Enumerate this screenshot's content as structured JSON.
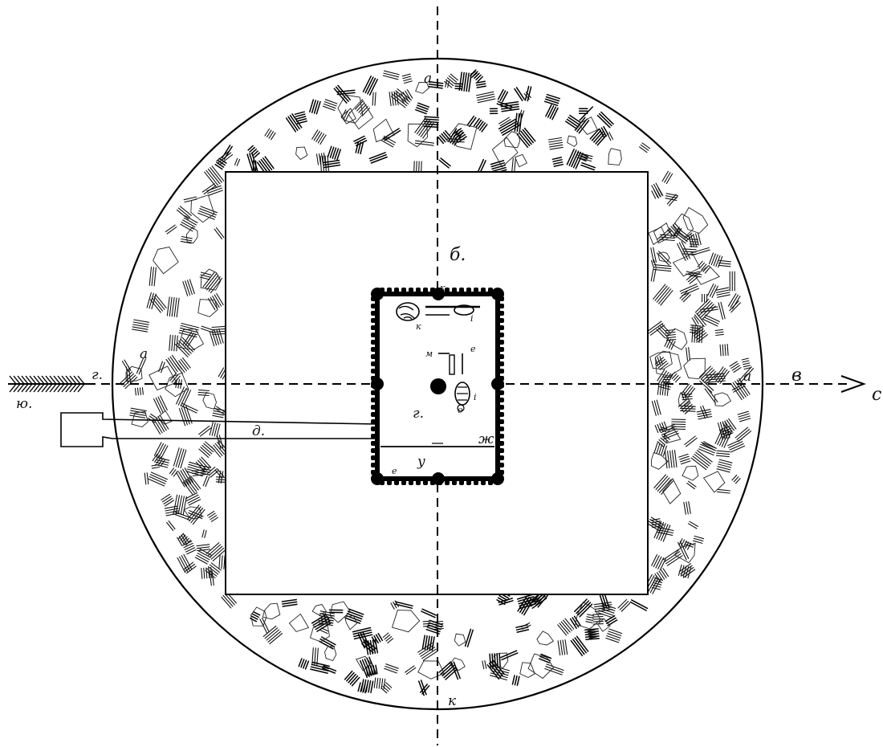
{
  "labels": {
    "top_a": "а",
    "mound_b": "б.",
    "grave_k_top": "к",
    "left_a": "а",
    "left_g": "г.",
    "arrow_yu": "ю.",
    "right_a": "а",
    "right_v": "в",
    "arrow_s": "с",
    "corridor_d": "д.",
    "pit_g": "г.",
    "pit_zh": "ж",
    "pit_y": "у",
    "pit_e": "е",
    "find_k": "к",
    "find_i": "і",
    "find_m": "м",
    "find_e2": "е",
    "find_o": "о",
    "find_i2": "і",
    "bottom_k": "к"
  },
  "colors": {
    "ink": "#000000",
    "paper": "#ffffff"
  }
}
